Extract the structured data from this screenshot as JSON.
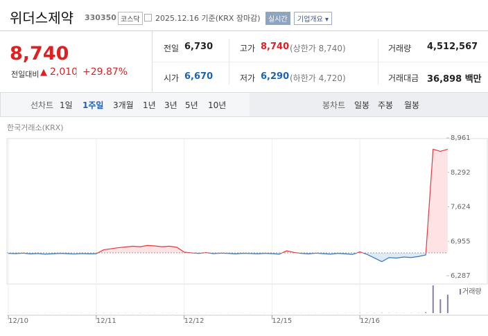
{
  "header": {
    "title": "위더스제약",
    "code": "330350",
    "market": "코스닥",
    "date": "2025.12.16 기준(KRX 장마감)",
    "realtime": "실시간",
    "company": "기업개요 ▾"
  },
  "price": {
    "current": "8,740",
    "change_label": "전일대비",
    "change": "2,010",
    "change_rate": "+29.87%"
  },
  "stats": [
    {
      "label": "전일",
      "value": "6,730"
    },
    {
      "label": "고가",
      "value": "8,740",
      "note": "(상한가 8,740)"
    },
    {
      "label": "거래량",
      "value": "4,512,567"
    },
    {
      "label": "시가",
      "value": "6,670"
    },
    {
      "label": "저가",
      "value": "6,290",
      "note": "(하한가 4,720)"
    },
    {
      "label": "거래대금",
      "value": "36,898 백만"
    }
  ],
  "tabs": {
    "line_label": "선차트",
    "line": [
      "1일",
      "1주일",
      "3개월",
      "1년",
      "3년",
      "5년",
      "10년"
    ],
    "candle_label": "봉차트",
    "candle": [
      "일봉",
      "주봉",
      "월봉"
    ]
  },
  "chart_data": {
    "type": "line",
    "source": "한국거래소(KRX)",
    "x": [
      0,
      1,
      2,
      3,
      4,
      5,
      6,
      7,
      8,
      9,
      10,
      11,
      12,
      13,
      14,
      15,
      16,
      17,
      18,
      19,
      20,
      21,
      22,
      23,
      24,
      25,
      26,
      27,
      28,
      29,
      30,
      31,
      32,
      33,
      34,
      35,
      36,
      37,
      38,
      39,
      40,
      41,
      42,
      43,
      44,
      45,
      46,
      47,
      48,
      49,
      50,
      51,
      52,
      53,
      54,
      55,
      56,
      57,
      58,
      59,
      60
    ],
    "values": [
      6720,
      6715,
      6725,
      6710,
      6718,
      6705,
      6712,
      6720,
      6715,
      6708,
      6716,
      6712,
      6714,
      6790,
      6810,
      6830,
      6845,
      6860,
      6850,
      6875,
      6865,
      6850,
      6860,
      6840,
      6745,
      6730,
      6720,
      6735,
      6715,
      6725,
      6720,
      6710,
      6722,
      6718,
      6712,
      6720,
      6715,
      6705,
      6770,
      6740,
      6720,
      6710,
      6725,
      6715,
      6705,
      6720,
      6712,
      6700,
      6750,
      6700,
      6630,
      6560,
      6640,
      6630,
      6650,
      6640,
      6660,
      6690,
      8740,
      8700,
      8740
    ],
    "baseline": 6730,
    "up_color": "#e8363e",
    "down_color": "#3b76b4",
    "volume": {
      "name": "거래량",
      "color": "#8a7ca8",
      "values": [
        8000,
        6000,
        7000,
        5000,
        6000,
        5000,
        7000,
        6000,
        5000,
        6000,
        7000,
        8000,
        9000,
        12000,
        10000,
        9000,
        8000,
        9000,
        10000,
        8000,
        7000,
        8000,
        9000,
        7000,
        9000,
        8000,
        7000,
        6000,
        7000,
        6000,
        5000,
        6000,
        7000,
        6000,
        5000,
        7000,
        8000,
        7000,
        12000,
        9000,
        7000,
        6000,
        7000,
        6000,
        5000,
        6000,
        7000,
        8000,
        15000,
        12000,
        14000,
        18000,
        12000,
        10000,
        9000,
        10000,
        12000,
        60000,
        1800000,
        900000,
        1200000
      ]
    },
    "xlim": [
      -0.2,
      65.5
    ],
    "xticks": [
      {
        "value": 0,
        "label": "12/10"
      },
      {
        "value": 12,
        "label": "12/11"
      },
      {
        "value": 24,
        "label": "12/12"
      },
      {
        "value": 36,
        "label": "12/15"
      },
      {
        "value": 48,
        "label": "12/16"
      }
    ],
    "ylim": [
      6287,
      8961
    ],
    "yticks": [
      {
        "value": 8961,
        "label": "8,961"
      },
      {
        "value": 8292,
        "label": "8,292"
      },
      {
        "value": 7624,
        "label": "7,624"
      },
      {
        "value": 6955,
        "label": "6,955"
      },
      {
        "value": 6287,
        "label": "6,287"
      }
    ]
  }
}
